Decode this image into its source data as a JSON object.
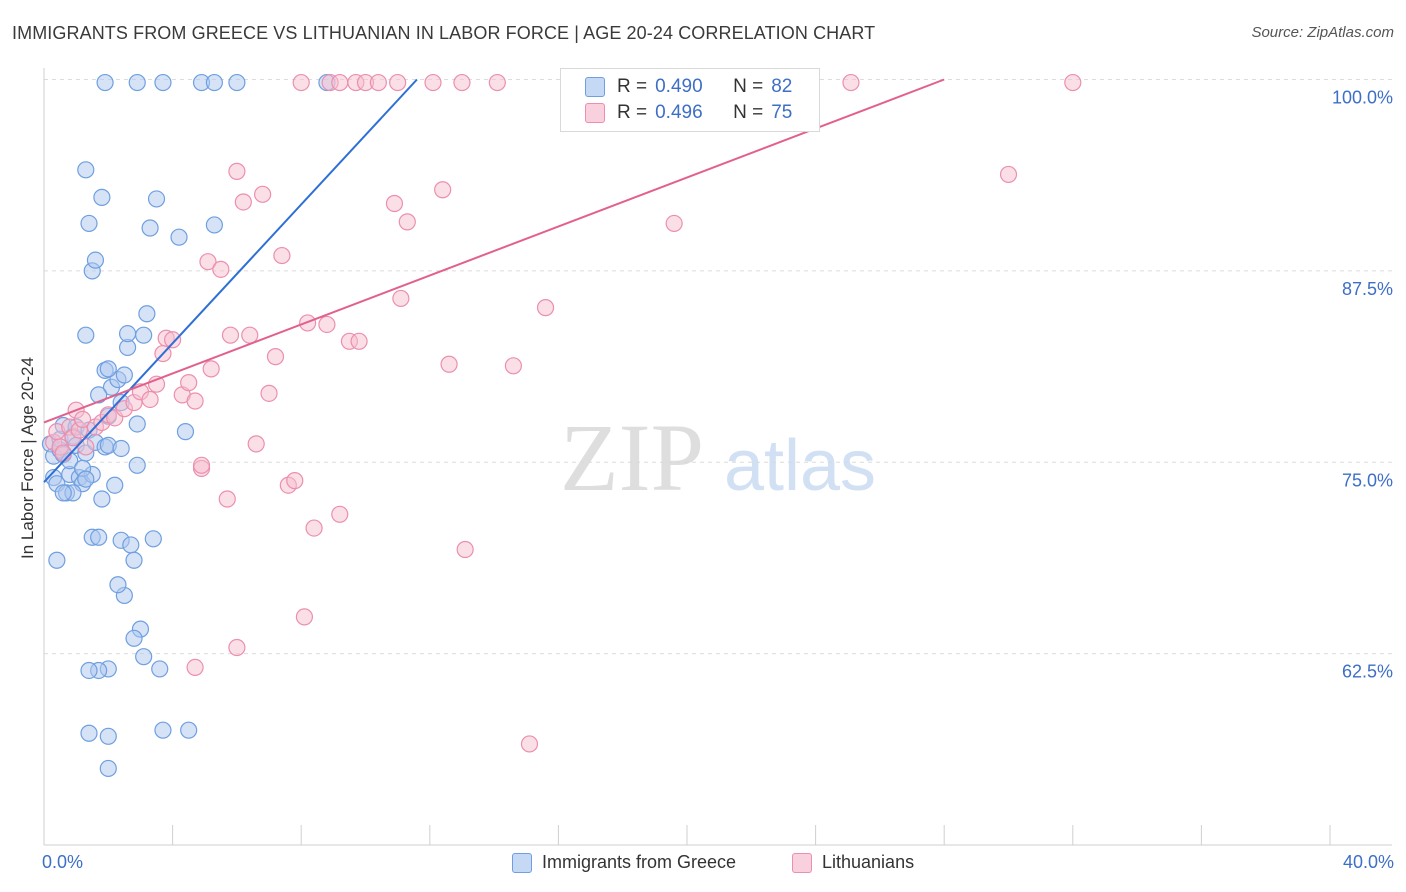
{
  "title": "IMMIGRANTS FROM GREECE VS LITHUANIAN IN LABOR FORCE | AGE 20-24 CORRELATION CHART",
  "source": "Source: ZipAtlas.com",
  "watermark": {
    "zip": "ZIP",
    "atlas": "atlas"
  },
  "legend": {
    "rows": [
      {
        "r_label": "R =",
        "r_value": "0.490",
        "n_label": "N =",
        "n_value": "82"
      },
      {
        "r_label": "R =",
        "r_value": "0.496",
        "n_label": "N =",
        "n_value": "75"
      }
    ]
  },
  "bottom_legend": [
    "Immigrants from Greece",
    "Lithuanians"
  ],
  "colors": {
    "blue_fill": "#aec8ef",
    "blue_stroke": "#6f9fe0",
    "blue_line": "#2e6fd6",
    "pink_fill": "#f6bfd0",
    "pink_stroke": "#ec8fae",
    "pink_line": "#e2608d",
    "tick_label": "#3d6fc6",
    "grid": "#dcdcdc"
  },
  "chart_data": {
    "type": "scatter",
    "title": "IMMIGRANTS FROM GREECE VS LITHUANIAN IN LABOR FORCE | AGE 20-24 CORRELATION CHART",
    "xlabel": "",
    "ylabel": "In Labor Force | Age 20-24",
    "xlim": [
      0,
      40
    ],
    "ylim": [
      50,
      101.5
    ],
    "x_tick_labels": [
      "0.0%",
      "40.0%"
    ],
    "y_ticks": [
      62.5,
      75.0,
      87.5,
      100.0
    ],
    "y_tick_labels": [
      "62.5%",
      "75.0%",
      "87.5%",
      "100.0%"
    ],
    "grid": true,
    "series": [
      {
        "name": "Immigrants from Greece",
        "r": 0.49,
        "n": 82,
        "trend": {
          "x": [
            0.0,
            11.6
          ],
          "y": [
            73.7,
            100.0
          ]
        },
        "points": [
          [
            0.2,
            76.2
          ],
          [
            0.3,
            75.4
          ],
          [
            0.3,
            74.0
          ],
          [
            0.4,
            73.6
          ],
          [
            0.5,
            75.8
          ],
          [
            0.5,
            76.5
          ],
          [
            0.6,
            77.4
          ],
          [
            0.6,
            75.5
          ],
          [
            0.7,
            73.0
          ],
          [
            0.8,
            74.2
          ],
          [
            0.8,
            75.1
          ],
          [
            0.9,
            76.7
          ],
          [
            1.0,
            77.3
          ],
          [
            1.0,
            76.1
          ],
          [
            1.1,
            74.0
          ],
          [
            1.2,
            73.6
          ],
          [
            1.3,
            75.6
          ],
          [
            1.4,
            77.1
          ],
          [
            1.5,
            74.2
          ],
          [
            1.6,
            76.3
          ],
          [
            0.4,
            68.6
          ],
          [
            1.5,
            70.1
          ],
          [
            1.7,
            70.1
          ],
          [
            1.8,
            72.6
          ],
          [
            1.9,
            76.0
          ],
          [
            2.0,
            76.1
          ],
          [
            1.2,
            74.6
          ],
          [
            1.3,
            73.9
          ],
          [
            0.9,
            73.0
          ],
          [
            0.6,
            73.0
          ],
          [
            2.2,
            73.5
          ],
          [
            2.0,
            78.0
          ],
          [
            2.1,
            79.9
          ],
          [
            1.7,
            79.4
          ],
          [
            2.3,
            80.4
          ],
          [
            1.9,
            81.0
          ],
          [
            2.0,
            81.1
          ],
          [
            1.3,
            83.3
          ],
          [
            1.3,
            94.1
          ],
          [
            1.4,
            90.6
          ],
          [
            1.5,
            87.5
          ],
          [
            1.6,
            88.2
          ],
          [
            1.8,
            92.3
          ],
          [
            2.5,
            80.7
          ],
          [
            2.4,
            75.9
          ],
          [
            2.4,
            78.9
          ],
          [
            2.6,
            82.5
          ],
          [
            2.6,
            83.4
          ],
          [
            2.4,
            69.9
          ],
          [
            2.7,
            69.6
          ],
          [
            2.8,
            68.6
          ],
          [
            2.5,
            66.3
          ],
          [
            2.3,
            67.0
          ],
          [
            2.9,
            77.5
          ],
          [
            2.9,
            74.8
          ],
          [
            3.1,
            83.3
          ],
          [
            3.2,
            84.7
          ],
          [
            3.3,
            90.3
          ],
          [
            3.5,
            92.2
          ],
          [
            3.4,
            70.0
          ],
          [
            3.6,
            61.5
          ],
          [
            3.1,
            62.3
          ],
          [
            3.0,
            64.1
          ],
          [
            2.8,
            63.5
          ],
          [
            4.2,
            89.7
          ],
          [
            4.4,
            77.0
          ],
          [
            4.5,
            57.5
          ],
          [
            5.3,
            90.5
          ],
          [
            3.7,
            57.5
          ],
          [
            2.0,
            57.1
          ],
          [
            1.4,
            57.3
          ],
          [
            2.0,
            61.5
          ],
          [
            2.0,
            55.0
          ],
          [
            1.7,
            61.4
          ],
          [
            1.4,
            61.4
          ],
          [
            1.9,
            99.8
          ],
          [
            2.9,
            99.8
          ],
          [
            3.7,
            99.8
          ],
          [
            4.9,
            99.8
          ],
          [
            5.3,
            99.8
          ],
          [
            6.0,
            99.8
          ],
          [
            8.8,
            99.8
          ]
        ]
      },
      {
        "name": "Lithuanians",
        "r": 0.496,
        "n": 75,
        "trend": {
          "x": [
            0.0,
            28.0
          ],
          "y": [
            77.6,
            100.0
          ]
        },
        "points": [
          [
            0.3,
            76.3
          ],
          [
            0.4,
            77.0
          ],
          [
            0.5,
            76.0
          ],
          [
            0.6,
            75.6
          ],
          [
            0.8,
            77.3
          ],
          [
            0.9,
            76.6
          ],
          [
            1.0,
            78.4
          ],
          [
            1.1,
            77.1
          ],
          [
            1.2,
            77.8
          ],
          [
            1.3,
            76.0
          ],
          [
            1.6,
            77.3
          ],
          [
            1.8,
            77.6
          ],
          [
            2.0,
            78.1
          ],
          [
            2.2,
            77.9
          ],
          [
            2.5,
            78.5
          ],
          [
            2.8,
            78.9
          ],
          [
            3.0,
            79.6
          ],
          [
            3.3,
            79.1
          ],
          [
            3.5,
            80.1
          ],
          [
            3.7,
            82.1
          ],
          [
            3.8,
            83.1
          ],
          [
            4.0,
            83.0
          ],
          [
            4.3,
            79.4
          ],
          [
            4.5,
            80.2
          ],
          [
            4.7,
            79.0
          ],
          [
            4.9,
            74.6
          ],
          [
            5.1,
            88.1
          ],
          [
            5.2,
            81.1
          ],
          [
            5.5,
            87.6
          ],
          [
            5.7,
            72.6
          ],
          [
            5.8,
            83.3
          ],
          [
            6.0,
            94.0
          ],
          [
            6.2,
            92.0
          ],
          [
            6.4,
            83.3
          ],
          [
            6.6,
            76.2
          ],
          [
            6.8,
            92.5
          ],
          [
            7.0,
            79.5
          ],
          [
            7.2,
            81.9
          ],
          [
            7.4,
            88.5
          ],
          [
            7.6,
            73.5
          ],
          [
            7.8,
            73.8
          ],
          [
            8.2,
            84.1
          ],
          [
            8.4,
            70.7
          ],
          [
            8.8,
            84.0
          ],
          [
            9.2,
            71.6
          ],
          [
            9.5,
            82.9
          ],
          [
            9.8,
            82.9
          ],
          [
            10.9,
            91.9
          ],
          [
            11.1,
            85.7
          ],
          [
            11.3,
            90.7
          ],
          [
            12.4,
            92.8
          ],
          [
            12.6,
            81.4
          ],
          [
            13.1,
            69.3
          ],
          [
            14.6,
            81.3
          ],
          [
            15.1,
            56.6
          ],
          [
            15.6,
            85.1
          ],
          [
            6.0,
            62.9
          ],
          [
            8.1,
            64.9
          ],
          [
            4.7,
            61.6
          ],
          [
            4.9,
            74.8
          ],
          [
            19.6,
            90.6
          ],
          [
            30.0,
            93.8
          ],
          [
            8.0,
            99.8
          ],
          [
            8.9,
            99.8
          ],
          [
            9.2,
            99.8
          ],
          [
            9.7,
            99.8
          ],
          [
            10.0,
            99.8
          ],
          [
            10.4,
            99.8
          ],
          [
            11.0,
            99.8
          ],
          [
            12.1,
            99.8
          ],
          [
            13.0,
            99.8
          ],
          [
            14.1,
            99.8
          ],
          [
            16.8,
            99.8
          ],
          [
            25.1,
            99.8
          ],
          [
            32.0,
            99.8
          ]
        ]
      }
    ]
  }
}
